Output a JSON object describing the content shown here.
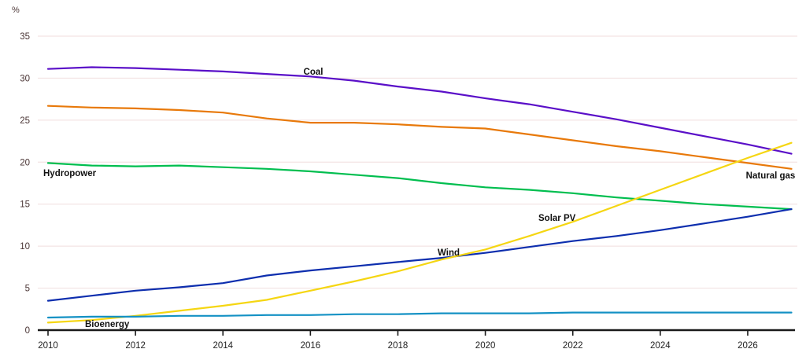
{
  "chart_data": {
    "type": "line",
    "title": "",
    "unit_label": "%",
    "xlabel": "",
    "ylabel": "%",
    "ylim": [
      0,
      35
    ],
    "y_ticks": [
      0,
      5,
      10,
      15,
      20,
      25,
      30,
      35
    ],
    "x_ticks": [
      2010,
      2012,
      2014,
      2016,
      2018,
      2020,
      2022,
      2024,
      2026
    ],
    "grid": true,
    "legend_position": "inline-labels",
    "x": [
      2010,
      2011,
      2012,
      2013,
      2014,
      2015,
      2016,
      2017,
      2018,
      2019,
      2020,
      2021,
      2022,
      2023,
      2024,
      2025,
      2026,
      2027
    ],
    "series": [
      {
        "name": "Coal",
        "color": "#5a0fc8",
        "values": [
          31.1,
          31.3,
          31.2,
          31.0,
          30.8,
          30.5,
          30.2,
          29.7,
          29.0,
          28.4,
          27.6,
          26.9,
          26.0,
          25.1,
          24.1,
          23.1,
          22.1,
          21.0
        ]
      },
      {
        "name": "Natural gas",
        "color": "#e8790a",
        "values": [
          26.7,
          26.5,
          26.4,
          26.2,
          25.9,
          25.2,
          24.7,
          24.7,
          24.5,
          24.2,
          24.0,
          23.3,
          22.6,
          21.9,
          21.3,
          20.6,
          19.9,
          19.2
        ]
      },
      {
        "name": "Hydropower",
        "color": "#00be4f",
        "values": [
          19.9,
          19.6,
          19.5,
          19.6,
          19.4,
          19.2,
          18.9,
          18.5,
          18.1,
          17.5,
          17.0,
          16.7,
          16.3,
          15.8,
          15.4,
          15.0,
          14.7,
          14.4
        ]
      },
      {
        "name": "Wind",
        "color": "#0d2eae",
        "values": [
          3.5,
          4.1,
          4.7,
          5.1,
          5.6,
          6.5,
          7.1,
          7.6,
          8.1,
          8.6,
          9.2,
          9.9,
          10.6,
          11.2,
          11.9,
          12.7,
          13.5,
          14.4
        ]
      },
      {
        "name": "Solar PV",
        "color": "#f5d612",
        "values": [
          0.9,
          1.2,
          1.7,
          2.3,
          2.9,
          3.6,
          4.7,
          5.8,
          7.0,
          8.4,
          9.6,
          11.2,
          12.9,
          14.8,
          16.7,
          18.6,
          20.5,
          22.3
        ]
      },
      {
        "name": "Bioenergy",
        "color": "#1391c4",
        "values": [
          1.5,
          1.6,
          1.6,
          1.7,
          1.7,
          1.8,
          1.8,
          1.9,
          1.9,
          2.0,
          2.0,
          2.0,
          2.1,
          2.1,
          2.1,
          2.1,
          2.1,
          2.1
        ]
      }
    ],
    "colors": {
      "grid": "#f0dede",
      "axis": "#1a1a1a",
      "y_tick_label": "#4a3535",
      "x_tick_label": "#222222",
      "series_label": "#111111"
    }
  }
}
